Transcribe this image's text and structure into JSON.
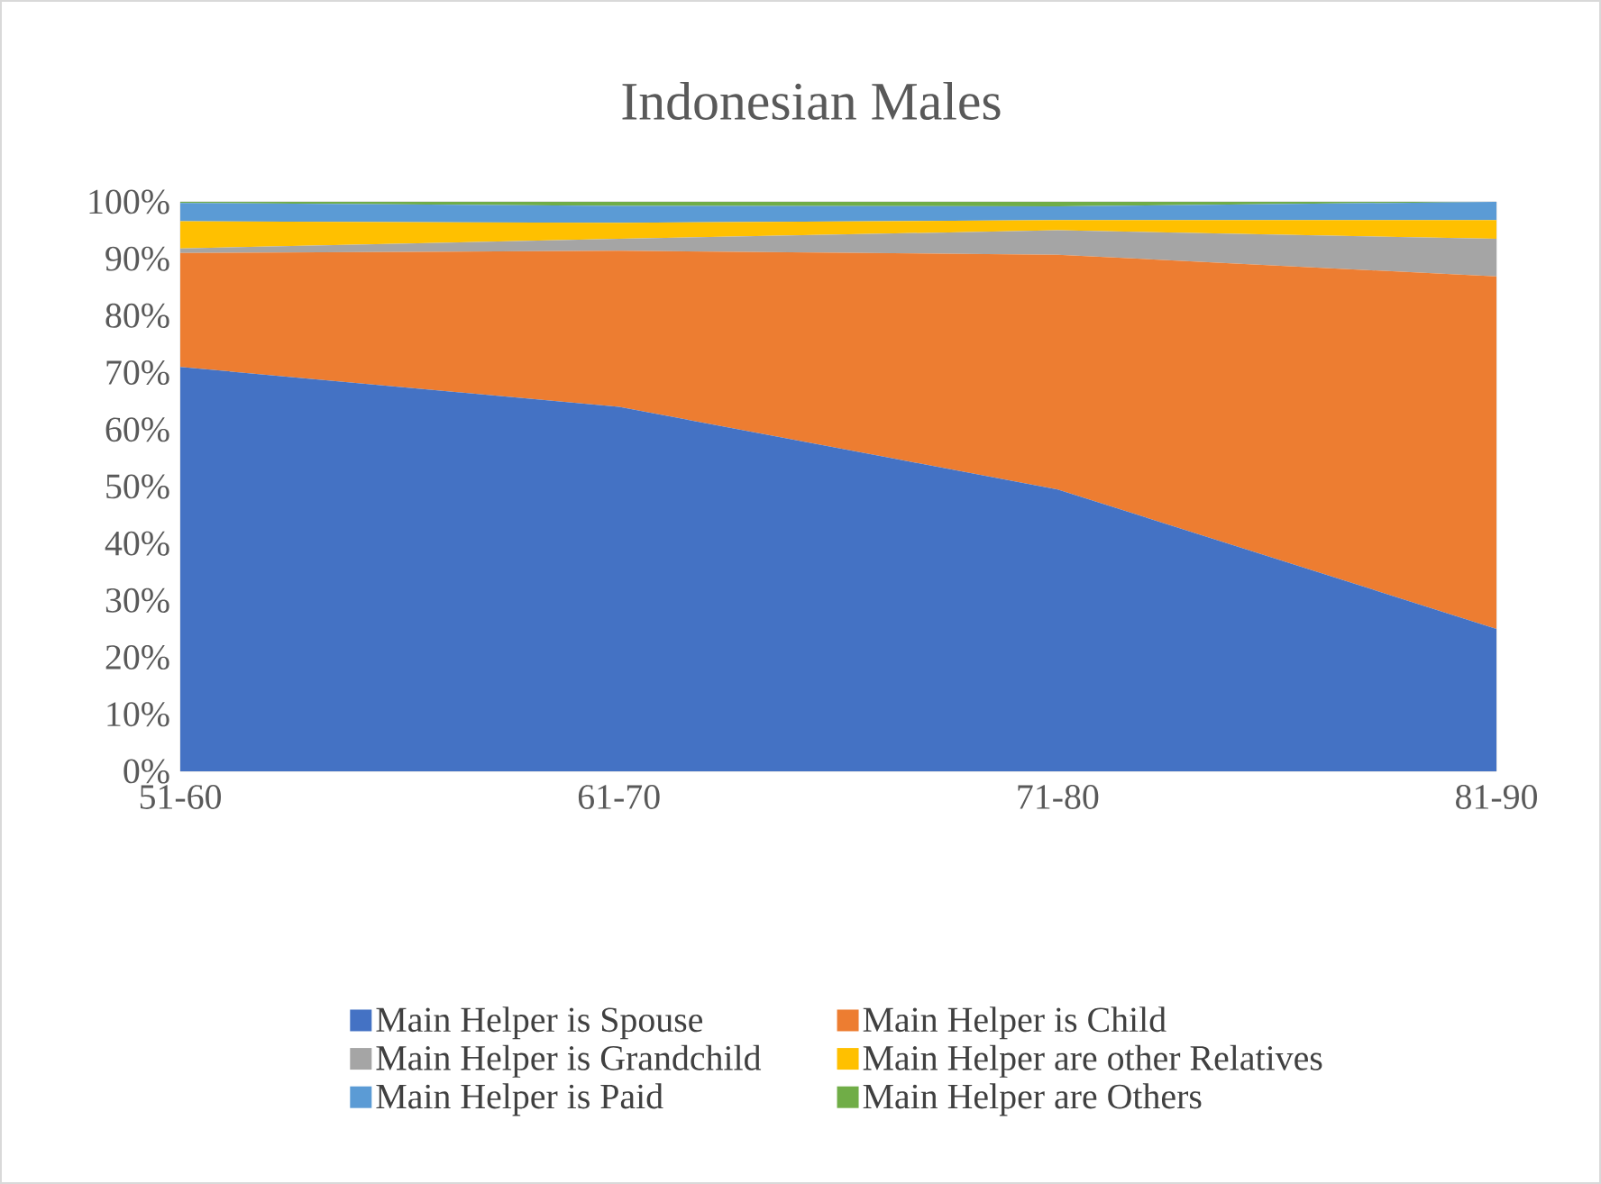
{
  "chart_data": {
    "type": "area",
    "stacked": true,
    "title": "Indonesian Males",
    "categories": [
      "51-60",
      "61-70",
      "71-80",
      "81-90"
    ],
    "series": [
      {
        "name": "Main Helper is Spouse",
        "color": "#4472c4",
        "values": [
          71,
          64,
          49.5,
          25
        ]
      },
      {
        "name": "Main Helper is Child",
        "color": "#ed7d31",
        "values": [
          20,
          27.4,
          41.2,
          61.9
        ]
      },
      {
        "name": "Main Helper is Grandchild",
        "color": "#a5a5a5",
        "values": [
          0.8,
          2.1,
          4.3,
          6.6
        ]
      },
      {
        "name": "Main Helper are other Relatives",
        "color": "#ffc000",
        "values": [
          4.8,
          2.8,
          1.8,
          3.3
        ]
      },
      {
        "name": "Main Helper is Paid",
        "color": "#5b9bd5",
        "values": [
          3.2,
          3,
          2.4,
          3.2
        ]
      },
      {
        "name": "Main Helper are Others",
        "color": "#70ad47",
        "values": [
          0.2,
          0.7,
          0.8,
          0
        ]
      }
    ],
    "ylim": [
      0,
      100
    ],
    "yticks": [
      {
        "value": 0,
        "label": "0%"
      },
      {
        "value": 10,
        "label": "10%"
      },
      {
        "value": 20,
        "label": "20%"
      },
      {
        "value": 30,
        "label": "30%"
      },
      {
        "value": 40,
        "label": "40%"
      },
      {
        "value": 50,
        "label": "50%"
      },
      {
        "value": 60,
        "label": "60%"
      },
      {
        "value": 70,
        "label": "70%"
      },
      {
        "value": 80,
        "label": "80%"
      },
      {
        "value": 90,
        "label": "90%"
      },
      {
        "value": 100,
        "label": "100%"
      }
    ],
    "grid": false,
    "legend": "bottom"
  }
}
